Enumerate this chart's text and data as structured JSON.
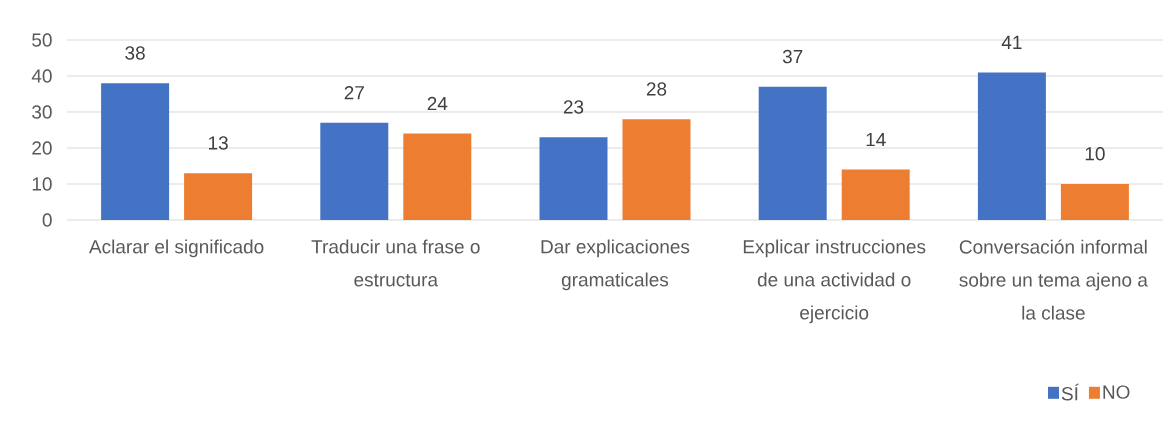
{
  "chart_data": {
    "type": "bar",
    "categories": [
      "Aclarar el significado",
      "Traducir una frase o estructura",
      "Dar explicaciones gramaticales",
      "Explicar instrucciones de una actividad o ejercicio",
      "Conversación informal sobre un tema ajeno a la clase"
    ],
    "series": [
      {
        "name": "SÍ",
        "color": "#4472c4",
        "values": [
          38,
          27,
          23,
          37,
          41
        ]
      },
      {
        "name": "NO",
        "color": "#ed7d31",
        "values": [
          13,
          24,
          28,
          14,
          10
        ]
      }
    ],
    "ylim": [
      0,
      50
    ],
    "yticks": [
      0,
      10,
      20,
      30,
      40,
      50
    ],
    "data_labels": true,
    "grid": "y",
    "legend": "bottom right"
  }
}
